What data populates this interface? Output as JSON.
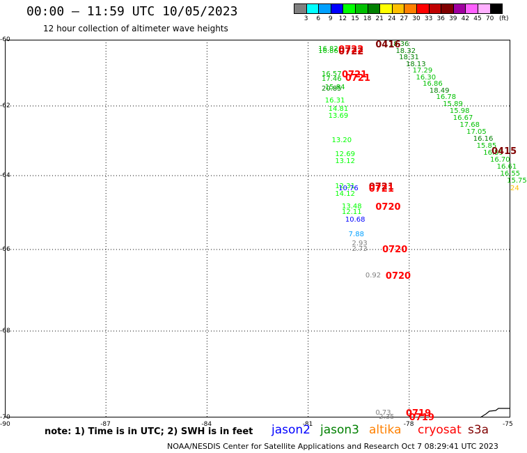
{
  "header": {
    "title": "00:00 – 11:59 UTC 10/05/2023",
    "subtitle": "12 hour collection of altimeter wave heights"
  },
  "colorbar": {
    "unit": "(ft)",
    "bins": [
      {
        "color": "#808080",
        "label": "3"
      },
      {
        "color": "#00ffff",
        "label": "6"
      },
      {
        "color": "#00a0ff",
        "label": "9"
      },
      {
        "color": "#0000ff",
        "label": "12"
      },
      {
        "color": "#00ff00",
        "label": "15"
      },
      {
        "color": "#00c000",
        "label": "18"
      },
      {
        "color": "#008000",
        "label": "21"
      },
      {
        "color": "#ffff00",
        "label": "24"
      },
      {
        "color": "#ffc000",
        "label": "27"
      },
      {
        "color": "#ff8000",
        "label": "30"
      },
      {
        "color": "#ff0000",
        "label": "33"
      },
      {
        "color": "#c00000",
        "label": "36"
      },
      {
        "color": "#800000",
        "label": "39"
      },
      {
        "color": "#a000a0",
        "label": "42"
      },
      {
        "color": "#ff60ff",
        "label": "45"
      },
      {
        "color": "#ffb0ff",
        "label": "70"
      },
      {
        "color": "#000000",
        "label": ""
      }
    ]
  },
  "map": {
    "lat_labels": [
      "-60",
      "-62",
      "-64",
      "-66",
      "-68",
      "-70"
    ],
    "lon_labels": [
      "-90",
      "-87",
      "-84",
      "-81",
      "-78",
      "-75"
    ],
    "observations": [
      {
        "lon": -80.7,
        "lat": -60.3,
        "text": "16.82",
        "color": "#00c000"
      },
      {
        "lon": -80.7,
        "lat": -60.35,
        "text": "16.86",
        "color": "#00c000"
      },
      {
        "lon": -80.6,
        "lat": -61.05,
        "text": "16.57",
        "color": "#00c000"
      },
      {
        "lon": -80.6,
        "lat": -61.2,
        "text": "17.46",
        "color": "#00c000"
      },
      {
        "lon": -80.6,
        "lat": -61.5,
        "text": "20.85",
        "color": "#008000"
      },
      {
        "lon": -80.5,
        "lat": -61.45,
        "text": "15.84",
        "color": "#00c000"
      },
      {
        "lon": -80.5,
        "lat": -61.85,
        "text": "16.31",
        "color": "#00ff00"
      },
      {
        "lon": -80.4,
        "lat": -62.1,
        "text": "14.81",
        "color": "#00ff00"
      },
      {
        "lon": -80.4,
        "lat": -62.3,
        "text": "13.69",
        "color": "#00ff00"
      },
      {
        "lon": -80.3,
        "lat": -63.0,
        "text": "13.20",
        "color": "#00ff00"
      },
      {
        "lon": -80.2,
        "lat": -63.4,
        "text": "12.69",
        "color": "#00ff00"
      },
      {
        "lon": -80.2,
        "lat": -63.6,
        "text": "13.12",
        "color": "#00ff00"
      },
      {
        "lon": -80.2,
        "lat": -64.3,
        "text": "12.31",
        "color": "#00ff00"
      },
      {
        "lon": -80.1,
        "lat": -64.35,
        "text": "10.76",
        "color": "#0000ff"
      },
      {
        "lon": -80.2,
        "lat": -64.5,
        "text": "14.12",
        "color": "#00ff00"
      },
      {
        "lon": -80.0,
        "lat": -64.85,
        "text": "13.48",
        "color": "#00ff00"
      },
      {
        "lon": -80.0,
        "lat": -65.0,
        "text": "12.11",
        "color": "#00ff00"
      },
      {
        "lon": -79.9,
        "lat": -65.2,
        "text": "10.68",
        "color": "#0000ff"
      },
      {
        "lon": -79.8,
        "lat": -65.6,
        "text": "7.88",
        "color": "#00a0ff"
      },
      {
        "lon": -79.7,
        "lat": -65.85,
        "text": "2.93",
        "color": "#808080"
      },
      {
        "lon": -79.7,
        "lat": -66.0,
        "text": "2.73",
        "color": "#808080"
      },
      {
        "lon": -79.3,
        "lat": -66.65,
        "text": "0.92",
        "color": "#808080"
      },
      {
        "lon": -78.6,
        "lat": -60.15,
        "text": "18.36",
        "color": "#008000"
      },
      {
        "lon": -78.4,
        "lat": -60.35,
        "text": "18.32",
        "color": "#008000"
      },
      {
        "lon": -78.3,
        "lat": -60.55,
        "text": "18.31",
        "color": "#008000"
      },
      {
        "lon": -78.1,
        "lat": -60.75,
        "text": "18.13",
        "color": "#008000"
      },
      {
        "lon": -77.9,
        "lat": -60.95,
        "text": "17.29",
        "color": "#00c000"
      },
      {
        "lon": -77.8,
        "lat": -61.15,
        "text": "16.30",
        "color": "#00c000"
      },
      {
        "lon": -77.6,
        "lat": -61.35,
        "text": "16.86",
        "color": "#00c000"
      },
      {
        "lon": -77.4,
        "lat": -61.55,
        "text": "18.49",
        "color": "#008000"
      },
      {
        "lon": -77.2,
        "lat": -61.75,
        "text": "16.78",
        "color": "#00c000"
      },
      {
        "lon": -77.0,
        "lat": -61.95,
        "text": "15.89",
        "color": "#00c000"
      },
      {
        "lon": -76.8,
        "lat": -62.15,
        "text": "15.98",
        "color": "#00c000"
      },
      {
        "lon": -76.7,
        "lat": -62.35,
        "text": "16.67",
        "color": "#00c000"
      },
      {
        "lon": -76.5,
        "lat": -62.55,
        "text": "17.68",
        "color": "#00c000"
      },
      {
        "lon": -76.3,
        "lat": -62.75,
        "text": "17.05",
        "color": "#00c000"
      },
      {
        "lon": -76.1,
        "lat": -62.95,
        "text": "16.16",
        "color": "#008000"
      },
      {
        "lon": -76.0,
        "lat": -63.15,
        "text": "15.85",
        "color": "#00c000"
      },
      {
        "lon": -75.8,
        "lat": -63.35,
        "text": "16.59",
        "color": "#00c000"
      },
      {
        "lon": -75.6,
        "lat": -63.55,
        "text": "16.70",
        "color": "#00c000"
      },
      {
        "lon": -75.4,
        "lat": -63.75,
        "text": "16.61",
        "color": "#00c000"
      },
      {
        "lon": -75.3,
        "lat": -63.95,
        "text": "16.55",
        "color": "#00c000"
      },
      {
        "lon": -75.1,
        "lat": -64.15,
        "text": "15.75",
        "color": "#00c000"
      },
      {
        "lon": -75.0,
        "lat": -64.35,
        "text": "24",
        "color": "#ffc000"
      },
      {
        "lon": -79.0,
        "lat": -69.9,
        "text": "0.73",
        "color": "#808080"
      },
      {
        "lon": -78.9,
        "lat": -70.45,
        "text": "2.35",
        "color": "#808080"
      }
    ],
    "passes": [
      {
        "lon": -80.1,
        "lat": -60.3,
        "text": "0722",
        "color": "#ff0000"
      },
      {
        "lon": -80.1,
        "lat": -60.35,
        "text": "0722",
        "color": "#c00000"
      },
      {
        "lon": -80.0,
        "lat": -61.05,
        "text": "0721",
        "color": "#ff0000"
      },
      {
        "lon": -79.9,
        "lat": -61.15,
        "text": "0721",
        "color": "#ff0000"
      },
      {
        "lon": -79.0,
        "lat": -60.15,
        "text": "0416",
        "color": "#800000"
      },
      {
        "lon": -75.2,
        "lat": -63.3,
        "text": "0415",
        "color": "#800000"
      },
      {
        "lon": -79.2,
        "lat": -64.3,
        "text": "0721",
        "color": "#c00000"
      },
      {
        "lon": -79.2,
        "lat": -64.35,
        "text": "0721",
        "color": "#ff0000"
      },
      {
        "lon": -79.0,
        "lat": -64.85,
        "text": "0720",
        "color": "#ff0000"
      },
      {
        "lon": -78.8,
        "lat": -66.0,
        "text": "0720",
        "color": "#ff0000"
      },
      {
        "lon": -78.7,
        "lat": -66.65,
        "text": "0720",
        "color": "#ff0000"
      },
      {
        "lon": -78.1,
        "lat": -69.9,
        "text": "0719",
        "color": "#ff0000"
      },
      {
        "lon": -78.0,
        "lat": -70.45,
        "text": "0719",
        "color": "#ff0000"
      }
    ]
  },
  "legend": {
    "satellites": [
      {
        "name": "jason2",
        "color": "#0000ff"
      },
      {
        "name": "jason3",
        "color": "#008000"
      },
      {
        "name": "altika",
        "color": "#ff8000"
      },
      {
        "name": "cryosat",
        "color": "#ff0000"
      },
      {
        "name": "s3a",
        "color": "#800000"
      }
    ]
  },
  "footer": {
    "note": "note:  1) Time is in UTC;  2) SWH is in feet",
    "credit": "NOAA/NESDIS Center for Satellite Applications and Research     Oct  7 08:29:41 UTC 2023"
  }
}
